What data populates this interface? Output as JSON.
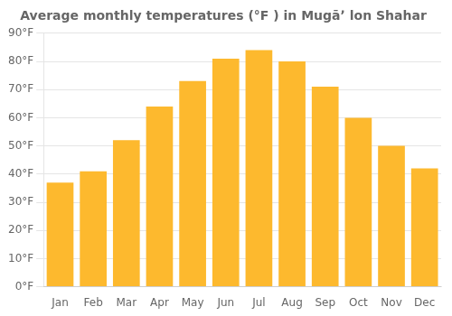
{
  "chart_data": {
    "type": "bar",
    "title": "Average monthly temperatures (°F ) in Mugāʼ lon Shahar",
    "categories": [
      "Jan",
      "Feb",
      "Mar",
      "Apr",
      "May",
      "Jun",
      "Jul",
      "Aug",
      "Sep",
      "Oct",
      "Nov",
      "Dec"
    ],
    "values": [
      37,
      41,
      52,
      64,
      73,
      81,
      84,
      80,
      71,
      60,
      50,
      42
    ],
    "color": "#FDB92E",
    "ylim": [
      0,
      90
    ],
    "yticks": [
      {
        "value": 0,
        "label": "0°F"
      },
      {
        "value": 10,
        "label": "10°F"
      },
      {
        "value": 20,
        "label": "20°F"
      },
      {
        "value": 30,
        "label": "30°F"
      },
      {
        "value": 40,
        "label": "40°F"
      },
      {
        "value": 50,
        "label": "50°F"
      },
      {
        "value": 60,
        "label": "60°F"
      },
      {
        "value": 70,
        "label": "70°F"
      },
      {
        "value": 80,
        "label": "80°F"
      },
      {
        "value": 90,
        "label": "90°F"
      }
    ],
    "grid": true
  }
}
